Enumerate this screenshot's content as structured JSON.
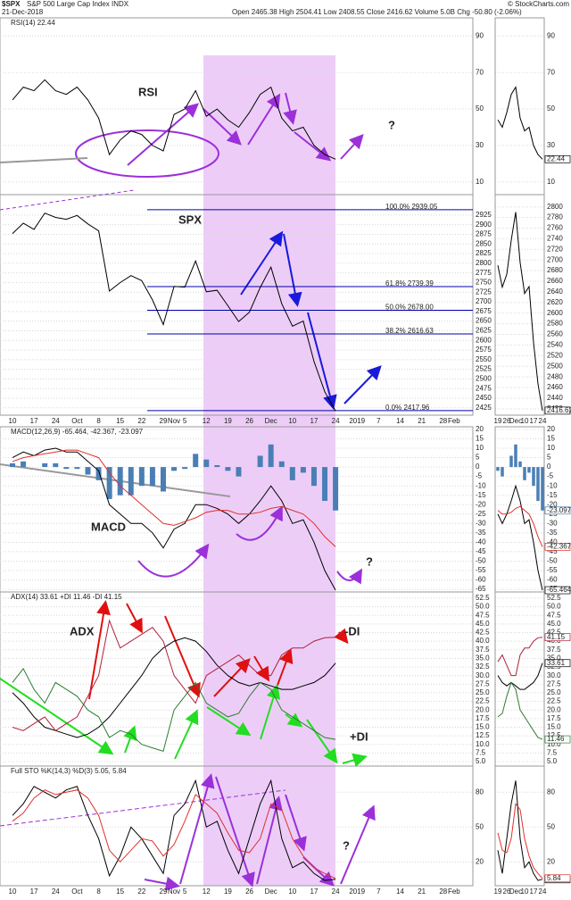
{
  "header": {
    "symbol": "$SPX",
    "name": "S&P 500 Large Cap Index INDX",
    "date": "21-Dec-2018",
    "quote": "Open 2465.38 High 2504.41 Low 2408.55 Close 2416.62 Volume 5.0B Chg -50.80 (-2.06%)",
    "source": "© StockCharts.com"
  },
  "chart_data": [
    {
      "type": "line",
      "title": "RSI(14) 22.44",
      "ylim": [
        3,
        100
      ],
      "yticks": [
        10,
        30,
        50,
        70,
        90
      ],
      "grid": true,
      "series": [
        {
          "color": "#000000",
          "values": [
            55,
            62,
            60,
            66,
            60,
            58,
            62,
            55,
            45,
            25,
            33,
            38,
            36,
            30,
            27,
            47,
            50,
            60,
            46,
            50,
            44,
            40,
            48,
            58,
            62,
            45,
            38,
            40,
            30,
            25,
            22.44,
            null,
            null,
            null,
            null,
            null,
            null,
            null,
            null,
            null,
            null,
            null
          ]
        }
      ],
      "annotations": [
        {
          "text": "RSI",
          "color": "#1a1adb"
        },
        {
          "text": "?",
          "color": "#9b30d9"
        }
      ]
    },
    {
      "type": "line",
      "ylim": [
        2406,
        2978
      ],
      "yticks": [
        2425,
        2450,
        2475,
        2500,
        2525,
        2550,
        2575,
        2600,
        2625,
        2650,
        2675,
        2700,
        2725,
        2750,
        2775,
        2800,
        2825,
        2850,
        2875,
        2900,
        2925
      ],
      "grid": true,
      "mini_ylim": [
        2408,
        2823
      ],
      "mini_yticks": [
        2420,
        2440,
        2460,
        2480,
        2500,
        2520,
        2540,
        2560,
        2580,
        2600,
        2620,
        2640,
        2660,
        2680,
        2700,
        2720,
        2740,
        2760,
        2780,
        2800
      ],
      "categories": [
        "10",
        null,
        "17",
        null,
        "24",
        null,
        "Oct",
        null,
        "8",
        null,
        "15",
        null,
        "22",
        null,
        "29",
        "Nov",
        "5",
        null,
        "12",
        null,
        "19",
        null,
        "26",
        null,
        "Dec",
        null,
        "10",
        null,
        "17",
        null,
        "24",
        null,
        "2019",
        null,
        "7",
        null,
        "14",
        null,
        "21",
        null,
        "28",
        "Feb"
      ],
      "series": [
        {
          "color": "#000000",
          "values": [
            2877,
            2904,
            2888,
            2930,
            2919,
            2914,
            2924,
            2902,
            2884,
            2728,
            2750,
            2768,
            2755,
            2705,
            2641,
            2740,
            2738,
            2806,
            2726,
            2730,
            2690,
            2649,
            2673,
            2737,
            2790,
            2695,
            2637,
            2650,
            2545,
            2467,
            2416.62,
            null,
            null,
            null,
            null,
            null,
            null,
            null,
            null,
            null,
            null,
            null
          ]
        }
      ],
      "fib_levels": [
        {
          "label": "100.0% 2939.05",
          "value": 2939.05
        },
        {
          "label": "61.8% 2739.39",
          "value": 2739.39
        },
        {
          "label": "50.0% 2678.00",
          "value": 2678.0
        },
        {
          "label": "38.2% 2616.63",
          "value": 2616.63
        },
        {
          "label": "0.0% 2417.96",
          "value": 2417.96
        }
      ],
      "fib_color": "#0000aa",
      "annotations": [
        {
          "text": "SPX",
          "color": "#1a1adb"
        }
      ]
    },
    {
      "type": "line",
      "title": "MACD(12,26,9) -65.464, -42.367, -23.097",
      "ylim": [
        -66.4,
        21.4
      ],
      "yticks": [
        20,
        15,
        10,
        5,
        0,
        -5,
        -10,
        -15,
        -20,
        -25,
        -30,
        -35,
        -40,
        -45,
        -50,
        -55,
        -60,
        -65
      ],
      "grid": true,
      "series": [
        {
          "type": "bar",
          "color": "#4a7fb5",
          "values": [
            2,
            3,
            0,
            2,
            2,
            -1,
            -1,
            -4,
            -7,
            -17,
            -15,
            -15,
            -10,
            -10,
            -13,
            -2,
            -1,
            7,
            4,
            1,
            -2,
            -5,
            0,
            6,
            12,
            3,
            -7,
            -3,
            -10,
            -18,
            -23.097,
            null,
            null,
            null,
            null,
            null,
            null,
            null,
            null,
            null,
            null,
            null
          ]
        },
        {
          "color": "#000000",
          "values": [
            5,
            8,
            6,
            9,
            10,
            8,
            8,
            3,
            -2,
            -20,
            -25,
            -30,
            -30,
            -35,
            -43,
            -33,
            -30,
            -20,
            -20,
            -22,
            -25,
            -30,
            -25,
            -18,
            -10,
            -18,
            -30,
            -28,
            -40,
            -55,
            -65.464,
            null,
            null,
            null,
            null,
            null,
            null,
            null,
            null,
            null,
            null,
            null
          ]
        },
        {
          "color": "#e0302c",
          "values": [
            3,
            5,
            6,
            7,
            8,
            9,
            9,
            7,
            5,
            -3,
            -10,
            -15,
            -20,
            -25,
            -30,
            -31,
            -29,
            -27,
            -24,
            -23,
            -23,
            -25,
            -25,
            -24,
            -22,
            -21,
            -23,
            -25,
            -30,
            -37,
            -42.367,
            null,
            null,
            null,
            null,
            null,
            null,
            null,
            null,
            null,
            null,
            null
          ]
        }
      ],
      "annotations": [
        {
          "text": "MACD",
          "color": "#1a1adb"
        },
        {
          "text": "?",
          "color": "#9b30d9"
        }
      ]
    },
    {
      "type": "line",
      "title": "ADX(14) 33.61 +DI 11.46 -DI 41.15",
      "ylim": [
        3.7,
        54.3
      ],
      "yticks": [
        52.5,
        {
          "value": 50,
          "label": "50.0"
        },
        47.5,
        {
          "value": 45,
          "label": "45.0"
        },
        42.5,
        {
          "value": 40,
          "label": "40.0"
        },
        37.5,
        {
          "value": 35,
          "label": "35.0"
        },
        32.5,
        {
          "value": 30,
          "label": "30.0"
        },
        27.5,
        {
          "value": 25,
          "label": "25.0"
        },
        22.5,
        {
          "value": 20,
          "label": "20.0"
        },
        17.5,
        {
          "value": 15,
          "label": "15.0"
        },
        12.5,
        {
          "value": 10,
          "label": "10.0"
        },
        7.5,
        {
          "value": 5,
          "label": "5.0"
        }
      ],
      "grid": true,
      "series": [
        {
          "color": "#000000",
          "values": [
            25,
            22,
            18,
            15,
            14,
            13,
            12,
            13,
            15,
            18,
            22,
            26,
            30,
            35,
            38,
            40,
            41,
            40,
            37,
            33,
            30,
            28,
            27,
            28,
            27,
            26,
            26,
            27,
            28,
            30,
            33.61,
            null,
            null,
            null,
            null,
            null,
            null,
            null,
            null,
            null,
            null,
            null
          ]
        },
        {
          "color": "#2e7d32",
          "values": [
            28,
            32,
            26,
            22,
            28,
            26,
            24,
            20,
            18,
            12,
            14,
            13,
            10,
            9,
            8,
            20,
            24,
            28,
            22,
            20,
            18,
            19,
            24,
            28,
            26,
            20,
            18,
            16,
            14,
            12,
            11.46,
            null,
            null,
            null,
            null,
            null,
            null,
            null,
            null,
            null,
            null,
            null
          ]
        },
        {
          "color": "#b0203a",
          "values": [
            15,
            14,
            16,
            18,
            14,
            16,
            18,
            24,
            30,
            46,
            38,
            40,
            42,
            44,
            40,
            30,
            26,
            22,
            30,
            32,
            34,
            36,
            33,
            30,
            30,
            36,
            38,
            38,
            40,
            41,
            41.15,
            null,
            null,
            null,
            null,
            null,
            null,
            null,
            null,
            null,
            null,
            null
          ]
        }
      ],
      "annotations": [
        {
          "text": "ADX",
          "color": "#1a1adb"
        },
        {
          "text": "-DI",
          "color": "#e01010"
        },
        {
          "text": "+DI",
          "color": "#22bb22"
        }
      ]
    },
    {
      "type": "line",
      "title": "Full STO %K(14,3) %D(3) 5.05, 5.84",
      "ylim": [
        -0.5,
        102.5
      ],
      "yticks": [
        80,
        50,
        20
      ],
      "grid": true,
      "categories": [
        "10",
        null,
        "17",
        null,
        "24",
        null,
        "Oct",
        null,
        "8",
        null,
        "15",
        null,
        "22",
        null,
        "29",
        "Nov",
        "5",
        null,
        "12",
        null,
        "19",
        null,
        "26",
        null,
        "Dec",
        null,
        "10",
        null,
        "17",
        null,
        "24",
        null,
        "2019",
        null,
        "7",
        null,
        "14",
        null,
        "21",
        null,
        "28",
        "Feb"
      ],
      "series": [
        {
          "color": "#000000",
          "values": [
            60,
            70,
            85,
            80,
            75,
            82,
            85,
            60,
            40,
            8,
            25,
            50,
            40,
            25,
            10,
            60,
            70,
            90,
            50,
            55,
            30,
            10,
            40,
            70,
            90,
            40,
            15,
            20,
            10,
            4,
            5.05,
            null,
            null,
            null,
            null,
            null,
            null,
            null,
            null,
            null,
            null,
            null
          ]
        },
        {
          "color": "#e0302c",
          "values": [
            55,
            62,
            75,
            82,
            78,
            80,
            82,
            75,
            60,
            30,
            20,
            30,
            40,
            38,
            25,
            35,
            55,
            78,
            70,
            62,
            45,
            30,
            28,
            40,
            70,
            65,
            40,
            25,
            15,
            10,
            5.84,
            null,
            null,
            null,
            null,
            null,
            null,
            null,
            null,
            null,
            null,
            null
          ]
        }
      ],
      "annotations": [
        {
          "text": "?",
          "color": "#9b30d9"
        }
      ]
    }
  ]
}
